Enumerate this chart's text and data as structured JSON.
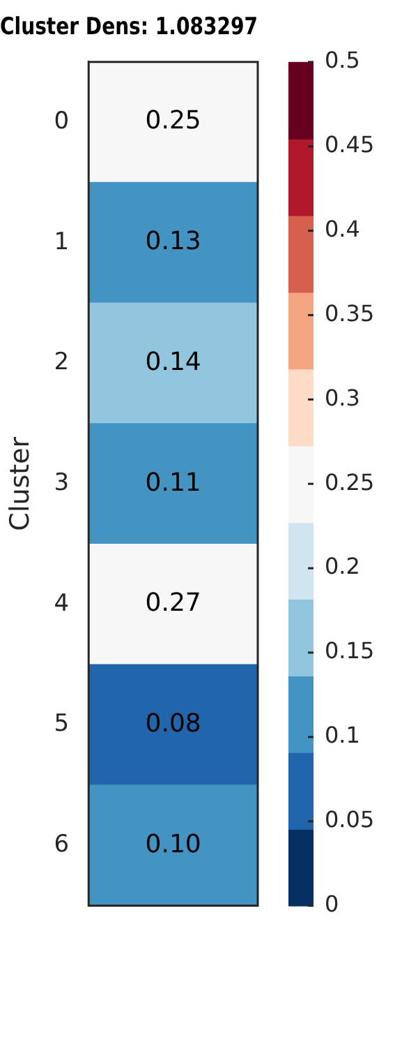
{
  "chart_data": {
    "type": "heatmap",
    "title": "Cluster Dens: 1.083297",
    "ylabel": "Cluster",
    "categories": [
      null
    ],
    "y_categories": [
      "0",
      "1",
      "2",
      "3",
      "4",
      "5",
      "6"
    ],
    "cells": [
      [
        0.25
      ],
      [
        0.13
      ],
      [
        0.14
      ],
      [
        0.11
      ],
      [
        0.27
      ],
      [
        0.08
      ],
      [
        0.1
      ]
    ],
    "cell_labels": [
      [
        "0.25"
      ],
      [
        "0.13"
      ],
      [
        "0.14"
      ],
      [
        "0.11"
      ],
      [
        "0.27"
      ],
      [
        "0.08"
      ],
      [
        "0.10"
      ]
    ],
    "clim": [
      0,
      0.5
    ],
    "cticks": [
      0,
      0.05,
      0.1,
      0.15,
      0.2,
      0.25,
      0.3,
      0.35,
      0.4,
      0.45,
      0.5
    ],
    "colors": [
      "#053061",
      "#2166ac",
      "#4393c3",
      "#92c5de",
      "#d1e5f0",
      "#f7f7f7",
      "#fddbc7",
      "#f4a582",
      "#d6604d",
      "#b2182b",
      "#67001f"
    ]
  }
}
